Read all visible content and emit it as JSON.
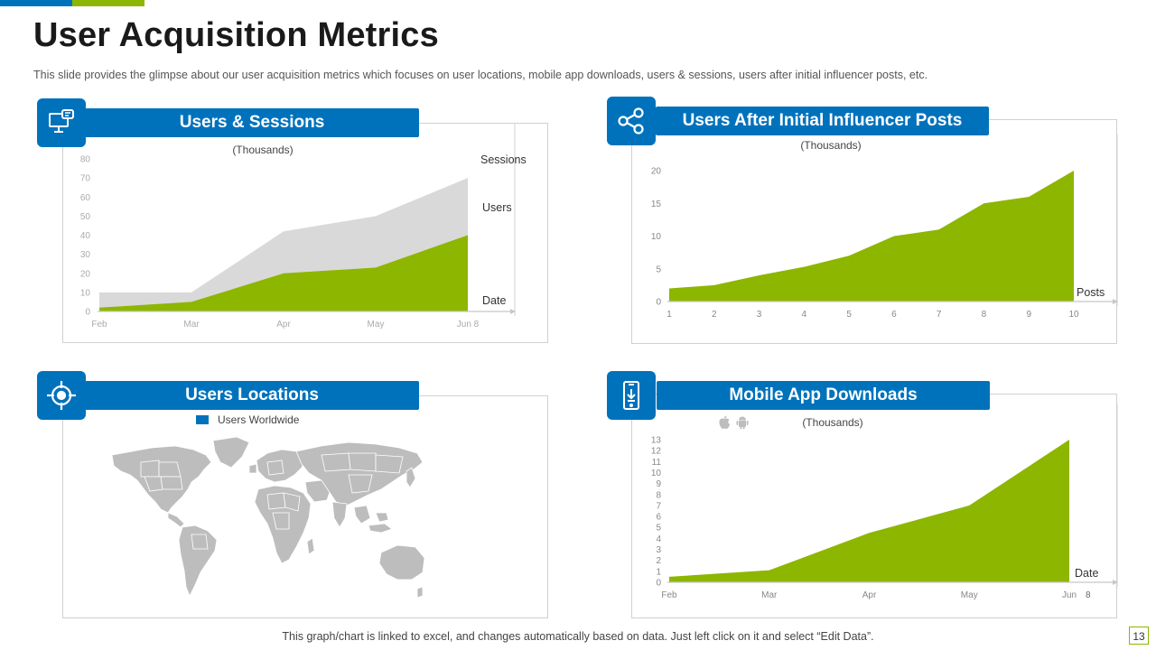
{
  "slide": {
    "title": "User Acquisition Metrics",
    "subtitle": "This slide provides  the glimpse about our user acquisition metrics which focuses on user locations, mobile app downloads,  users & sessions, users after initial influencer posts, etc.",
    "footer": "This graph/chart is linked to excel, and changes automatically based on data. Just left click on it and select “Edit Data”.",
    "page_number": "13",
    "colors": {
      "blue": "#0072BC",
      "green": "#8DB600",
      "gray": "#D9D9D9"
    }
  },
  "panels": {
    "sessions": {
      "title": "Users & Sessions",
      "icon": "monitor-chat-icon"
    },
    "influencer": {
      "title": "Users After Initial Influencer Posts",
      "icon": "share-nodes-icon"
    },
    "locations": {
      "title": "Users Locations",
      "icon": "target-crosshair-icon",
      "legend": "Users Worldwide"
    },
    "downloads": {
      "title": "Mobile App Downloads",
      "icon": "mobile-download-icon",
      "platform_icons": [
        "apple-icon",
        "android-icon"
      ]
    }
  },
  "chart_data": [
    {
      "id": "sessions",
      "type": "area",
      "title": "(Thousands)",
      "categories": [
        "Feb",
        "Mar",
        "Apr",
        "May",
        "Jun 8"
      ],
      "xlabel": "Date",
      "ylim": [
        0,
        80
      ],
      "yticks": [
        0,
        10,
        20,
        30,
        40,
        50,
        60,
        70,
        80
      ],
      "series": [
        {
          "name": "Sessions",
          "values": [
            10,
            10,
            42,
            50,
            70
          ],
          "color": "#D9D9D9"
        },
        {
          "name": "Users",
          "values": [
            2,
            5,
            20,
            23,
            40
          ],
          "color": "#8DB600"
        }
      ]
    },
    {
      "id": "influencer",
      "type": "area",
      "title": "(Thousands)",
      "categories": [
        "1",
        "2",
        "3",
        "4",
        "5",
        "6",
        "7",
        "8",
        "9",
        "10"
      ],
      "xlabel": "Posts",
      "ylim": [
        0,
        20
      ],
      "yticks": [
        0,
        5,
        10,
        15,
        20
      ],
      "series": [
        {
          "values": [
            2,
            2.5,
            4,
            5.3,
            7,
            10,
            11,
            15,
            16,
            20
          ],
          "color": "#8DB600"
        }
      ]
    },
    {
      "id": "downloads",
      "type": "area",
      "title": "(Thousands)",
      "categories": [
        "Feb",
        "Mar",
        "Apr",
        "May",
        "Jun"
      ],
      "xlabel": "Date",
      "extra_label": "8",
      "ylim": [
        0,
        13
      ],
      "yticks": [
        0,
        1,
        2,
        3,
        4,
        5,
        6,
        7,
        8,
        9,
        10,
        11,
        12,
        13
      ],
      "series": [
        {
          "values": [
            0.5,
            1.1,
            4.5,
            7,
            13
          ],
          "color": "#8DB600"
        }
      ]
    }
  ]
}
